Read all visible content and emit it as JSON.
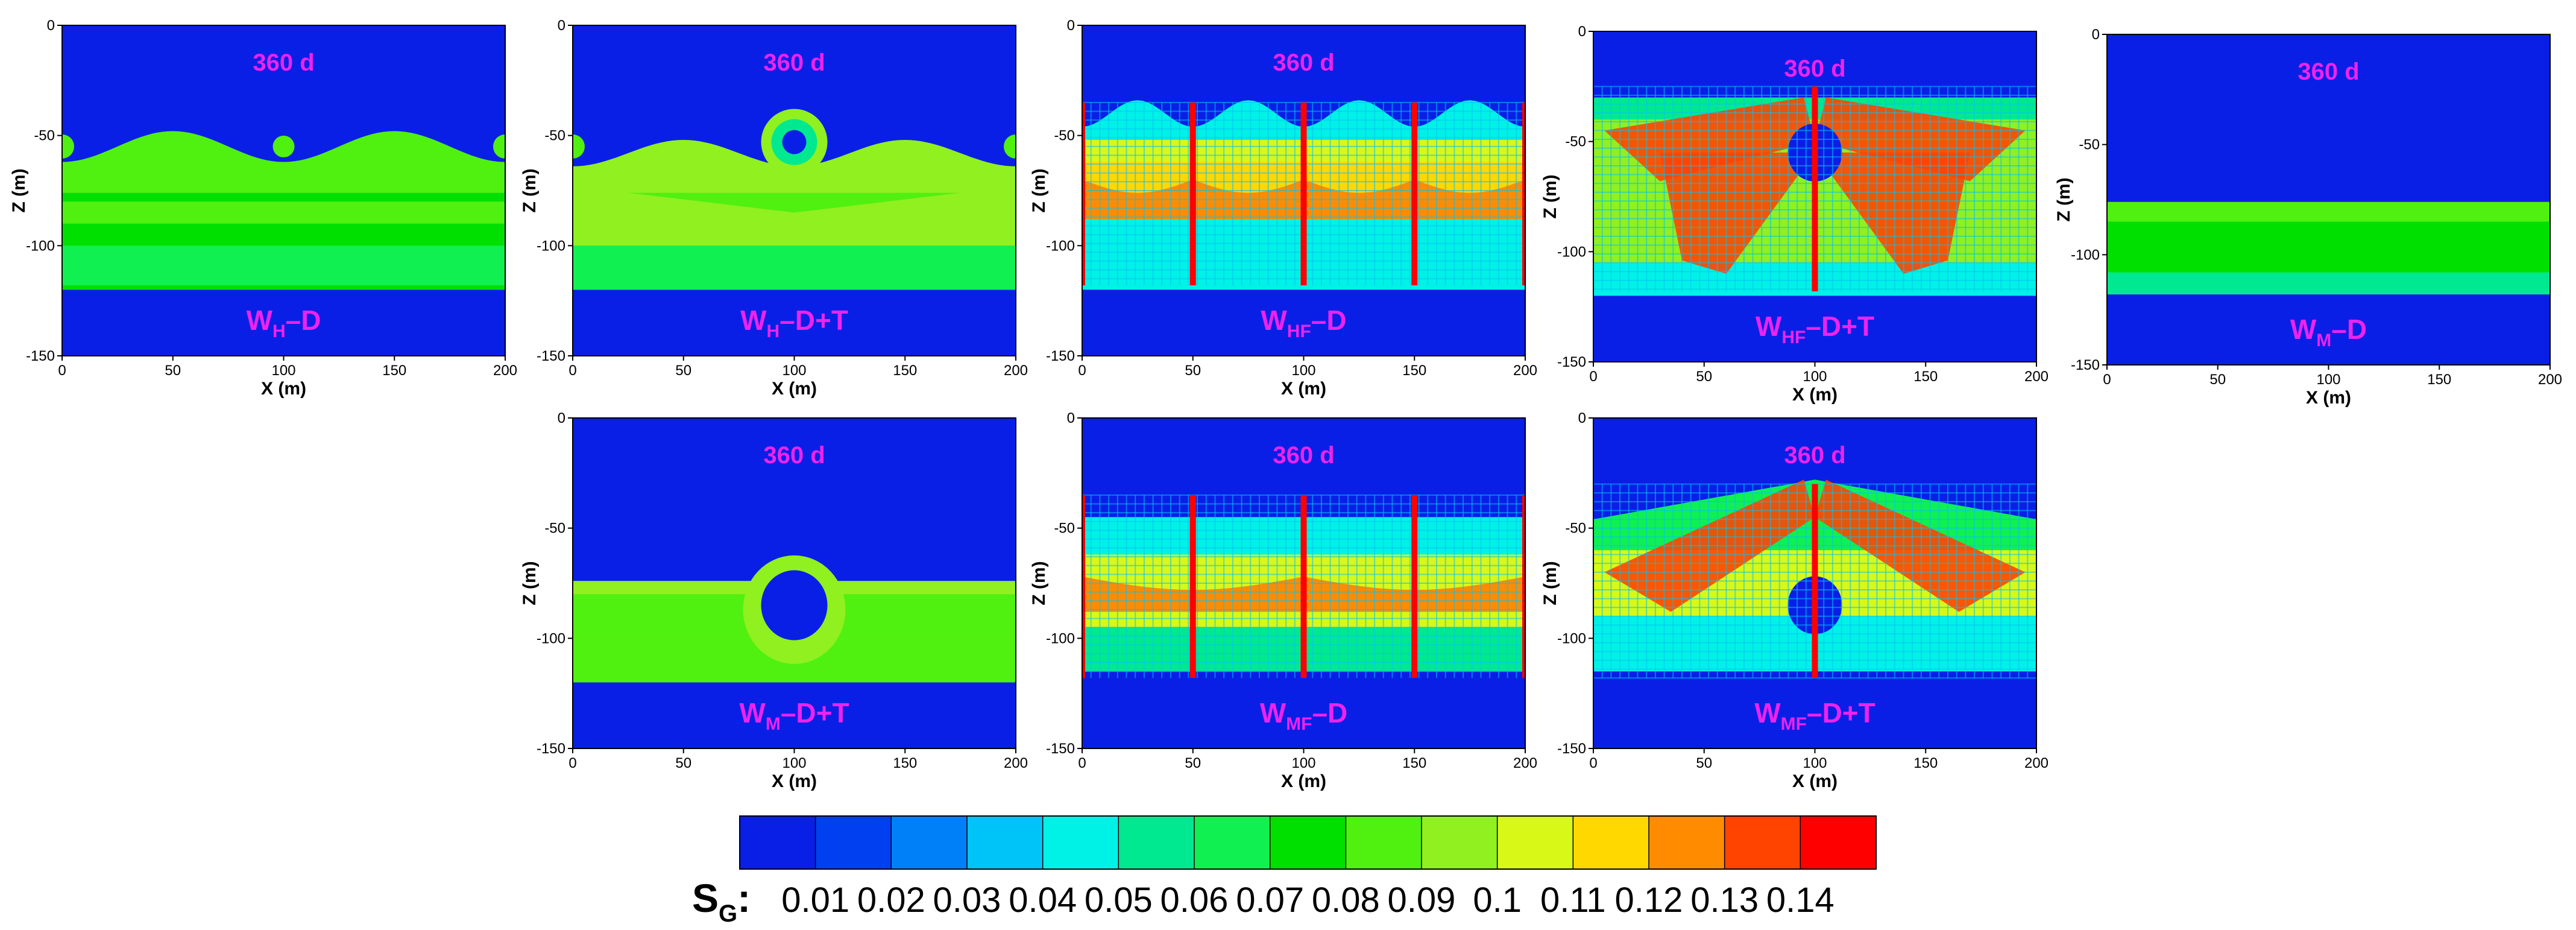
{
  "chart_data": {
    "type": "heatmap",
    "quantity": "S_G",
    "axes": {
      "xlabel": "X (m)",
      "ylabel": "Z (m)",
      "xlim": [
        0,
        200
      ],
      "ylim": [
        -150,
        0
      ],
      "xticks": [
        "0",
        "50",
        "100",
        "150",
        "200"
      ],
      "yticks": [
        "0",
        "-50",
        "-100",
        "-150"
      ]
    },
    "time_label": "360 d",
    "panels": [
      {
        "id": "wh-d",
        "label": {
          "main": "W",
          "sub": "H",
          "suffix": "–D"
        },
        "time": "360 d"
      },
      {
        "id": "wh-dt",
        "label": {
          "main": "W",
          "sub": "H",
          "suffix": "–D+T"
        },
        "time": "360 d"
      },
      {
        "id": "whf-d",
        "label": {
          "main": "W",
          "sub": "HF",
          "suffix": "–D"
        },
        "time": "360 d"
      },
      {
        "id": "whf-dt",
        "label": {
          "main": "W",
          "sub": "HF",
          "suffix": "–D+T"
        },
        "time": "360 d"
      },
      {
        "id": "wm-d",
        "label": {
          "main": "W",
          "sub": "M",
          "suffix": "–D"
        },
        "time": "360 d"
      },
      {
        "id": "wm-dt",
        "label": {
          "main": "W",
          "sub": "M",
          "suffix": "–D+T"
        },
        "time": "360 d"
      },
      {
        "id": "wmf-d",
        "label": {
          "main": "W",
          "sub": "MF",
          "suffix": "–D"
        },
        "time": "360 d"
      },
      {
        "id": "wmf-dt",
        "label": {
          "main": "W",
          "sub": "MF",
          "suffix": "–D+T"
        },
        "time": "360 d"
      }
    ],
    "colorbar": {
      "title_main": "S",
      "title_sub": "G",
      "title_suffix": ":",
      "ticks": [
        "0.01",
        "0.02",
        "0.03",
        "0.04",
        "0.05",
        "0.06",
        "0.07",
        "0.08",
        "0.09",
        "0.1",
        "0.11",
        "0.12",
        "0.13",
        "0.14"
      ],
      "colors": [
        "#0a1fe6",
        "#0040f0",
        "#0080f8",
        "#00c4f8",
        "#00f2e6",
        "#00e890",
        "#10f050",
        "#00e000",
        "#50f010",
        "#90f020",
        "#d8f818",
        "#ffd800",
        "#ff8c00",
        "#ff4400",
        "#ff0000"
      ]
    }
  }
}
